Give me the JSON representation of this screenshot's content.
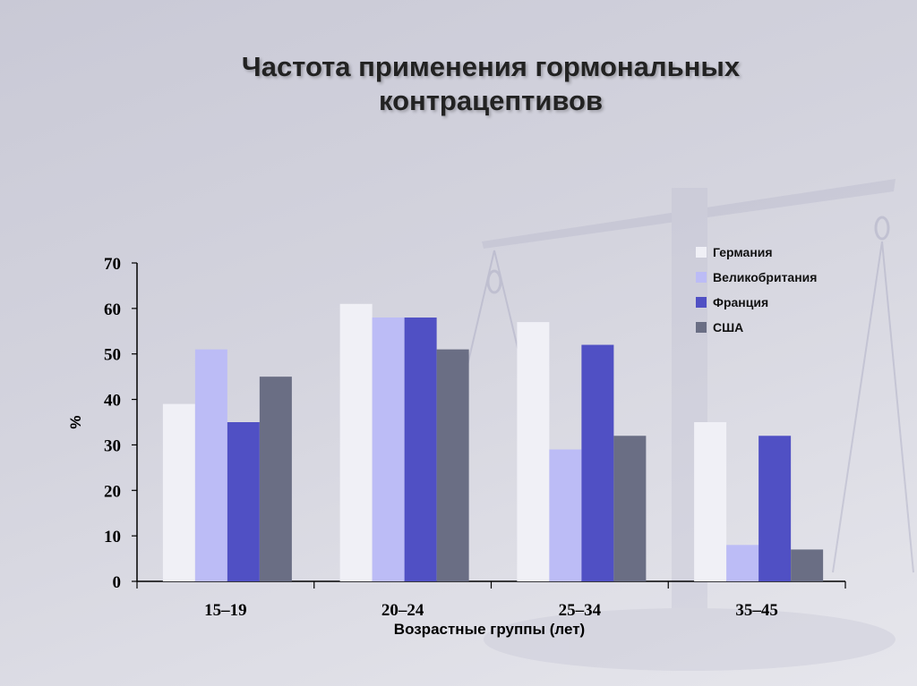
{
  "title": {
    "line1": "Частота применения гормональных",
    "line2": "контрацептивов"
  },
  "colors": {
    "accent_title": "#222222",
    "germany": "#f0f0f6",
    "uk": "#bcbcf6",
    "france": "#5050c4",
    "usa": "#6a6e84"
  },
  "chart_data": {
    "type": "bar",
    "title": "Частота применения гормональных контрацептивов",
    "ylabel": "%",
    "xlabel": "Возрастные группы (лет)",
    "ylim": [
      0,
      70
    ],
    "yticks": [
      "0",
      "10",
      "20",
      "30",
      "40",
      "50",
      "60",
      "70"
    ],
    "categories": [
      "15–19",
      "20–24",
      "25–34",
      "35–45"
    ],
    "series": [
      {
        "name": "Германия",
        "color": "#f0f0f6",
        "values": [
          39,
          61,
          57,
          35
        ]
      },
      {
        "name": "Великобритания",
        "color": "#bcbcf6",
        "values": [
          51,
          58,
          29,
          8
        ]
      },
      {
        "name": "Франция",
        "color": "#5050c4",
        "values": [
          35,
          58,
          52,
          32
        ]
      },
      {
        "name": "США",
        "color": "#6a6e84",
        "values": [
          45,
          51,
          32,
          7
        ]
      }
    ],
    "legend": "top-right",
    "grid": false
  }
}
